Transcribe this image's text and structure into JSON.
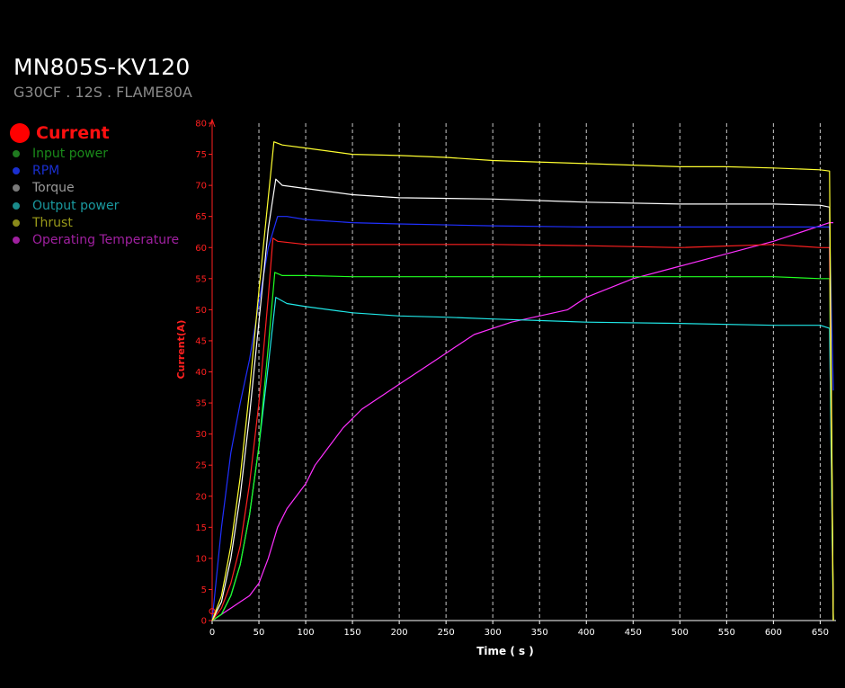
{
  "header": {
    "title": "MN805S-KV120",
    "subtitle": "G30CF . 12S . FLAME80A"
  },
  "legend": {
    "active": {
      "label": "Current",
      "color": "#ff0000"
    },
    "items": [
      {
        "label": "Input power",
        "color": "#1a8a1a",
        "dot": "#1f7a1f"
      },
      {
        "label": "RPM",
        "color": "#1a2fd0",
        "dot": "#1a2fd0"
      },
      {
        "label": "Torque",
        "color": "#9a9a9a",
        "dot": "#7a7a7a"
      },
      {
        "label": "Output power",
        "color": "#1a9aa0",
        "dot": "#1a8a8a"
      },
      {
        "label": "Thrust",
        "color": "#9a9a1a",
        "dot": "#8a8a1a"
      },
      {
        "label": "Operating Temperature",
        "color": "#a020a0",
        "dot": "#a020a0"
      }
    ]
  },
  "chart_data": {
    "type": "line",
    "xlabel": "Time ( s )",
    "ylabel": "Current(A)",
    "xlim": [
      0,
      665
    ],
    "ylim": [
      0,
      80
    ],
    "xticks": [
      0,
      50,
      100,
      150,
      200,
      250,
      300,
      350,
      400,
      450,
      500,
      550,
      600,
      650
    ],
    "yticks": [
      0,
      5,
      10,
      15,
      20,
      25,
      30,
      35,
      40,
      45,
      50,
      55,
      60,
      65,
      70,
      75,
      80
    ],
    "grid": "vertical dashed",
    "series": [
      {
        "name": "Current",
        "color": "#ff2020",
        "x": [
          0,
          10,
          20,
          30,
          40,
          50,
          60,
          65,
          70,
          100,
          150,
          200,
          300,
          400,
          500,
          600,
          650,
          660,
          664
        ],
        "y": [
          0,
          2,
          6,
          12,
          22,
          35,
          52,
          61.5,
          61,
          60.5,
          60.5,
          60.5,
          60.5,
          60.3,
          60,
          60.5,
          60,
          60,
          0
        ]
      },
      {
        "name": "Input power",
        "color": "#20ff20",
        "x": [
          0,
          10,
          20,
          30,
          40,
          50,
          60,
          67,
          75,
          100,
          150,
          200,
          300,
          400,
          500,
          600,
          650,
          660,
          664
        ],
        "y": [
          0,
          1,
          4,
          9,
          17,
          28,
          44,
          56,
          55.5,
          55.5,
          55.3,
          55.3,
          55.3,
          55.3,
          55.3,
          55.3,
          55,
          55,
          0
        ]
      },
      {
        "name": "RPM",
        "color": "#2030ff",
        "x": [
          0,
          10,
          20,
          30,
          40,
          50,
          60,
          70,
          80,
          100,
          150,
          200,
          300,
          400,
          500,
          600,
          650,
          660,
          664
        ],
        "y": [
          0,
          15,
          27,
          35,
          42,
          51,
          60,
          65,
          65,
          64.5,
          64,
          63.8,
          63.5,
          63.3,
          63.3,
          63.3,
          63.3,
          63.3,
          37
        ]
      },
      {
        "name": "Torque",
        "color": "#ffffff",
        "x": [
          0,
          10,
          20,
          30,
          40,
          50,
          60,
          68,
          75,
          100,
          150,
          200,
          300,
          400,
          500,
          600,
          650,
          660,
          664
        ],
        "y": [
          0,
          3,
          10,
          20,
          33,
          48,
          63,
          71,
          70,
          69.5,
          68.5,
          68,
          67.8,
          67.3,
          67,
          67,
          66.8,
          66.5,
          0
        ]
      },
      {
        "name": "Output power",
        "color": "#20e8e8",
        "x": [
          0,
          10,
          20,
          30,
          40,
          50,
          60,
          68,
          80,
          100,
          150,
          200,
          250,
          300,
          400,
          500,
          600,
          650,
          660,
          664
        ],
        "y": [
          0,
          1,
          4,
          9,
          17,
          28,
          41,
          52,
          51,
          50.5,
          49.5,
          49,
          48.8,
          48.5,
          48,
          47.8,
          47.5,
          47.5,
          47,
          0
        ]
      },
      {
        "name": "Thrust",
        "color": "#ffff30",
        "x": [
          0,
          10,
          20,
          30,
          40,
          50,
          60,
          66,
          75,
          100,
          150,
          200,
          250,
          300,
          400,
          500,
          550,
          600,
          650,
          660,
          664
        ],
        "y": [
          0,
          4,
          12,
          23,
          37,
          53,
          68,
          77,
          76.5,
          76,
          75,
          74.8,
          74.5,
          74,
          73.5,
          73,
          73,
          72.8,
          72.5,
          72.3,
          0
        ]
      },
      {
        "name": "Operating Temperature",
        "color": "#ff30ff",
        "x": [
          0,
          10,
          20,
          30,
          40,
          50,
          60,
          70,
          80,
          100,
          110,
          120,
          140,
          160,
          180,
          200,
          220,
          240,
          260,
          280,
          300,
          320,
          350,
          380,
          400,
          450,
          500,
          550,
          600,
          620,
          640,
          660,
          664
        ],
        "y": [
          0,
          1,
          2,
          3,
          4,
          6,
          10,
          15,
          18,
          22,
          25,
          27,
          31,
          34,
          36,
          38,
          40,
          42,
          44,
          46,
          47,
          48,
          49,
          50,
          52,
          55,
          57,
          59,
          61,
          62,
          63,
          64,
          64
        ]
      }
    ]
  }
}
